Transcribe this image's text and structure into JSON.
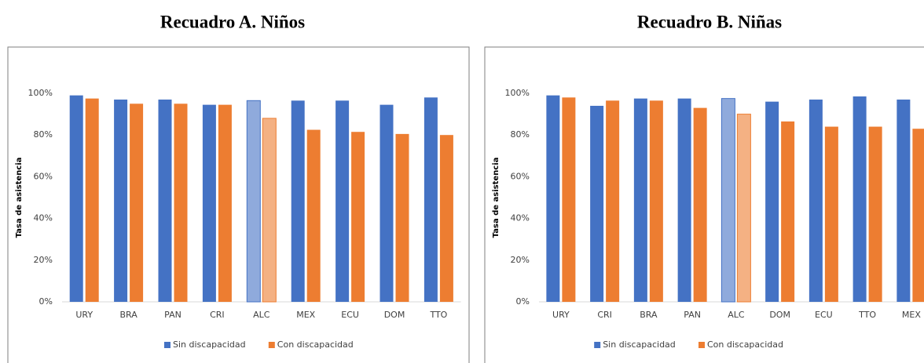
{
  "chart_data": [
    {
      "type": "bar",
      "title": "Recuadro A. Niños",
      "y_label": "Tasa de asistencia",
      "categories": [
        "URY",
        "BRA",
        "PAN",
        "CRI",
        "ALC",
        "MEX",
        "ECU",
        "DOM",
        "TTO"
      ],
      "series": [
        {
          "name": "Sin discapacidad",
          "color": "#4472c4",
          "highlight_color": "#8faadc",
          "values": [
            99,
            97,
            97,
            94.5,
            96.5,
            96.5,
            96.5,
            94.5,
            98
          ]
        },
        {
          "name": "Con discapacidad",
          "color": "#ed7d31",
          "highlight_color": "#f4b183",
          "values": [
            97.5,
            95,
            95,
            94.5,
            88,
            82.5,
            81.5,
            80.5,
            80
          ]
        }
      ],
      "highlight": "ALC",
      "ylim": [
        0,
        100
      ],
      "yticks": [
        {
          "value": 0,
          "label": "0%"
        },
        {
          "value": 20,
          "label": "20%"
        },
        {
          "value": 40,
          "label": "40%"
        },
        {
          "value": 60,
          "label": "60%"
        },
        {
          "value": 80,
          "label": "80%"
        },
        {
          "value": 100,
          "label": "100%"
        }
      ],
      "grid": false,
      "legend": "bottom"
    },
    {
      "type": "bar",
      "title": "Recuadro B. Niñas",
      "y_label": "Tasa de asistencia",
      "categories": [
        "URY",
        "CRI",
        "BRA",
        "PAN",
        "ALC",
        "DOM",
        "ECU",
        "TTO",
        "MEX"
      ],
      "series": [
        {
          "name": "Sin discapacidad",
          "color": "#4472c4",
          "highlight_color": "#8faadc",
          "values": [
            99,
            94,
            97.5,
            97.5,
            97.5,
            96,
            97,
            98.5,
            97
          ]
        },
        {
          "name": "Con discapacidad",
          "color": "#ed7d31",
          "highlight_color": "#f4b183",
          "values": [
            98,
            96.5,
            96.5,
            93,
            90,
            86.5,
            84,
            84,
            83
          ]
        }
      ],
      "highlight": "ALC",
      "ylim": [
        0,
        100
      ],
      "yticks": [
        {
          "value": 0,
          "label": "0%"
        },
        {
          "value": 20,
          "label": "20%"
        },
        {
          "value": 40,
          "label": "40%"
        },
        {
          "value": 60,
          "label": "60%"
        },
        {
          "value": 80,
          "label": "80%"
        },
        {
          "value": 100,
          "label": "100%"
        }
      ],
      "grid": false,
      "legend": "bottom"
    }
  ]
}
